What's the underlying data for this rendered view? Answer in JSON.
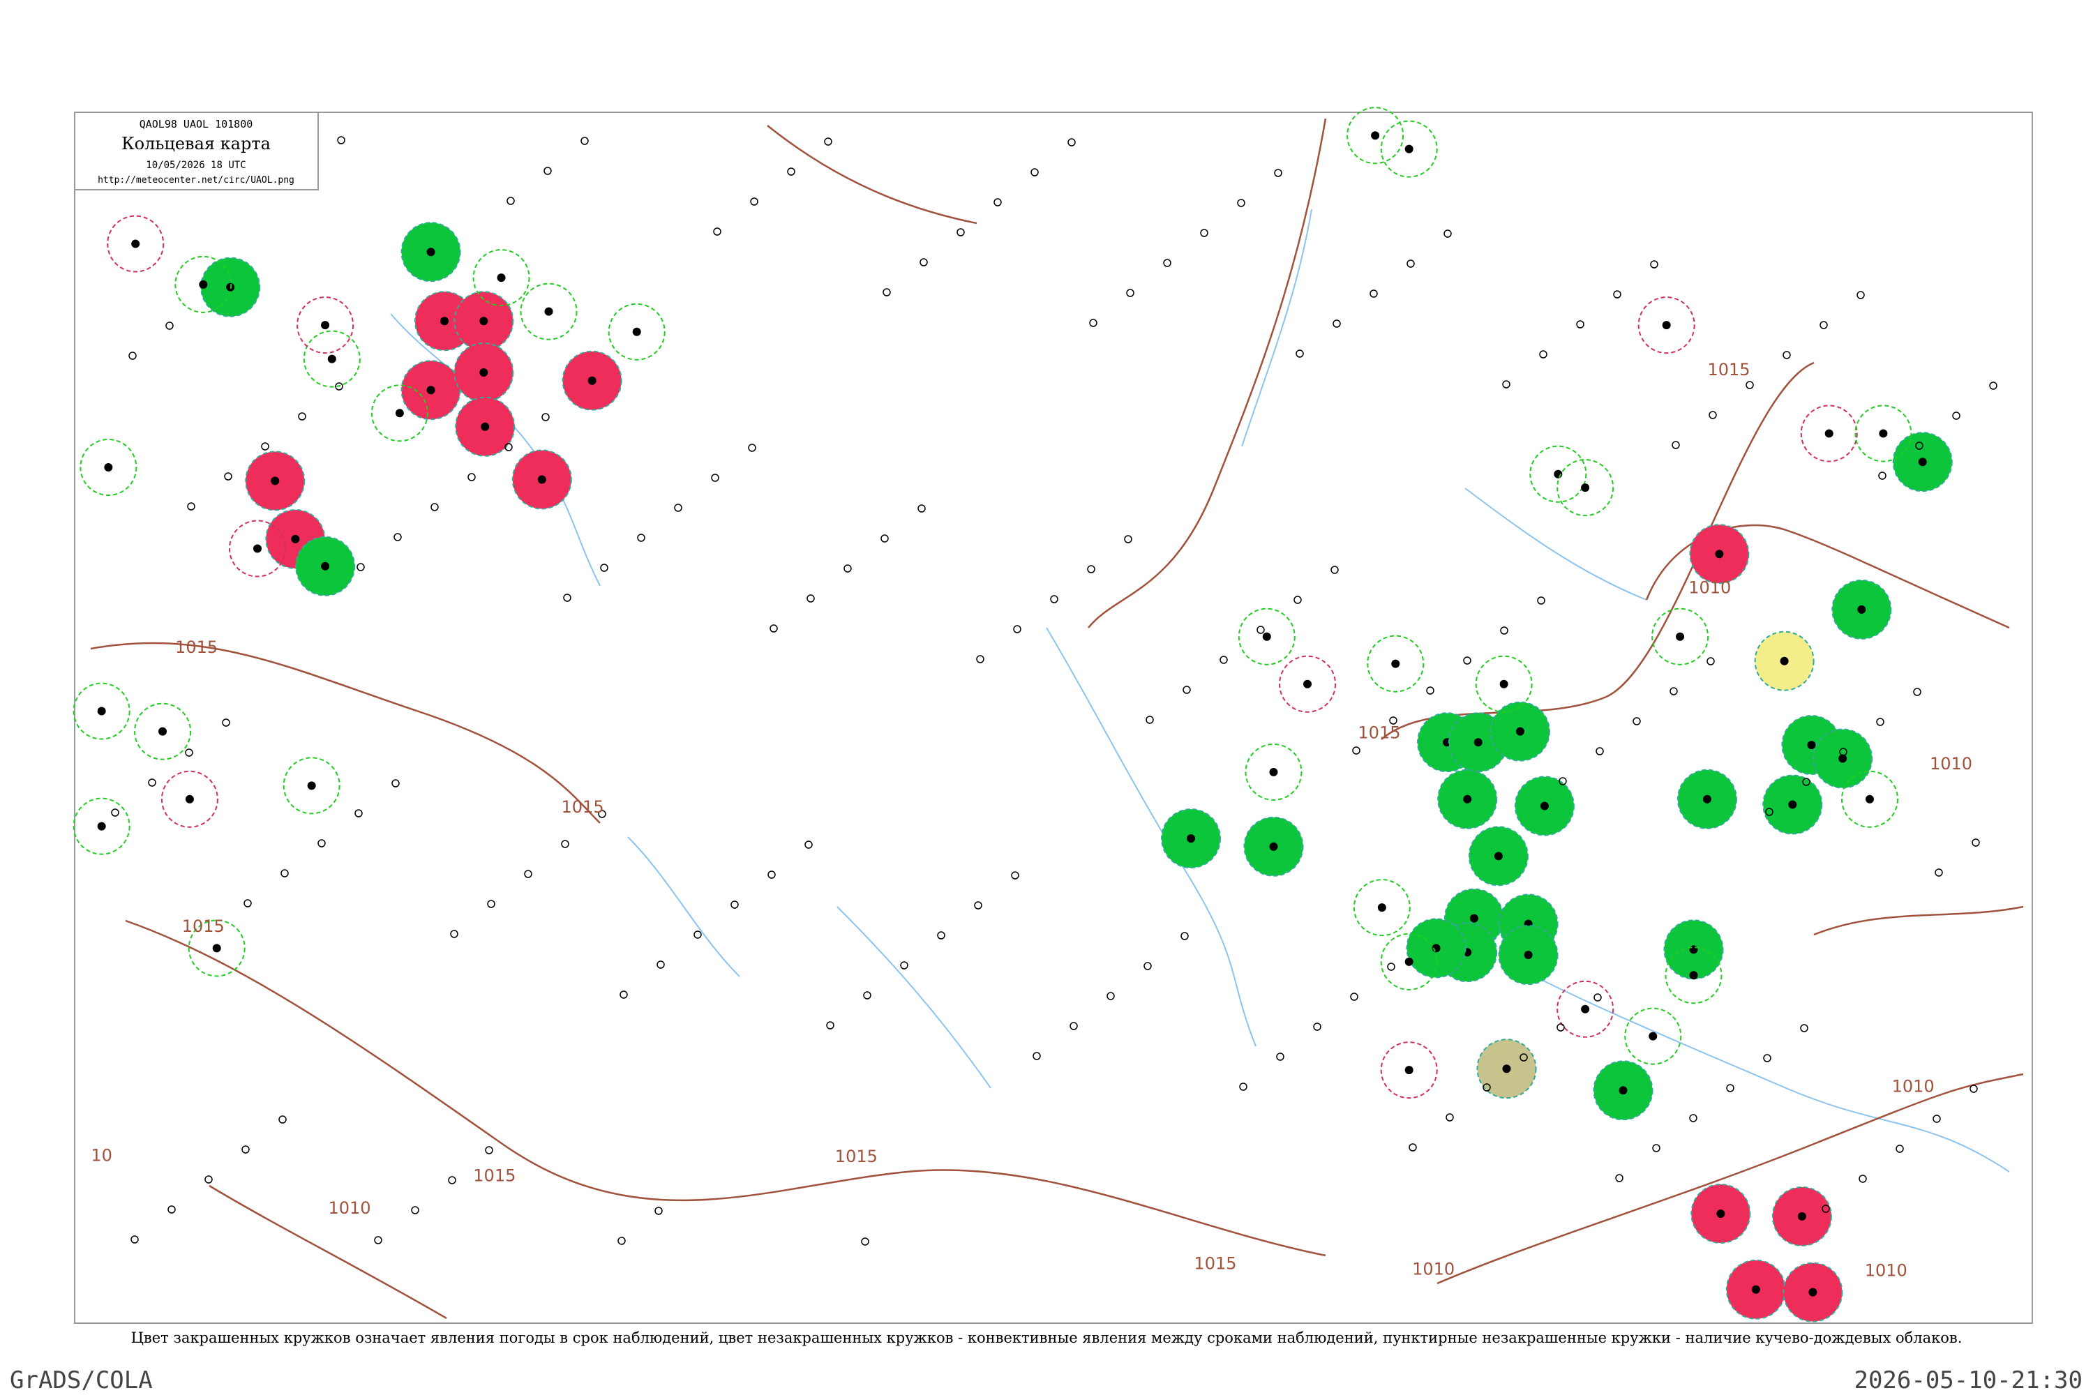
{
  "header": {
    "codes": "QAOL98  UAOL  101800",
    "title": "Кольцевая карта",
    "time": "10/05/2026 18 UTC",
    "url": "http://meteocenter.net/circ/UAOL.png"
  },
  "isobar_labels": [
    "1015",
    "1015",
    "1015",
    "1015",
    "1015",
    "1015",
    "1015",
    "1015",
    "1010",
    "1010",
    "1010",
    "1010",
    "1010",
    "1010",
    "10"
  ],
  "caption": "Цвет закрашенных кружков означает явления погоды в срок наблюдений, цвет незакрашенных кружков - конвективные явления между сроками наблюдений, пунктирные незакрашенные кружки - наличие кучево-дождевых облаков.",
  "footer": {
    "left": "GrADS/COLA",
    "right": "2026-05-10-21:30"
  }
}
